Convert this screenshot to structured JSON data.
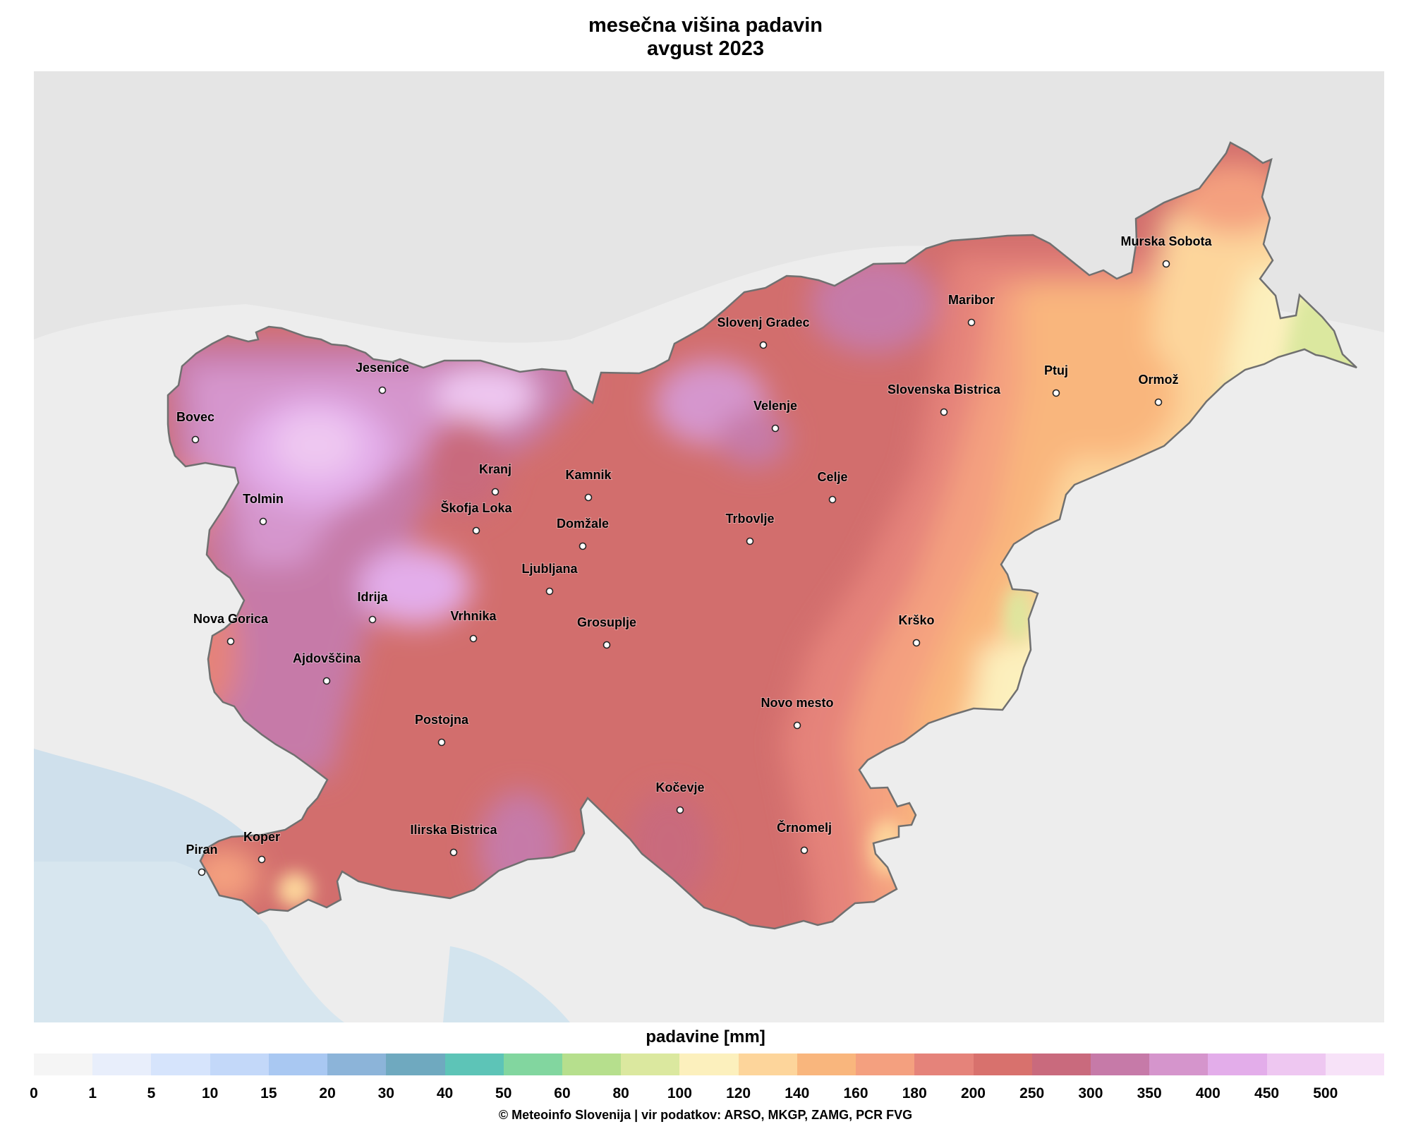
{
  "title": "mesečna višina padavin",
  "subtitle": "avgust 2023",
  "legend": {
    "label": "padavine [mm]",
    "ticks": [
      "0",
      "1",
      "5",
      "10",
      "15",
      "20",
      "30",
      "40",
      "50",
      "60",
      "80",
      "100",
      "120",
      "140",
      "160",
      "180",
      "200",
      "250",
      "300",
      "350",
      "400",
      "450",
      "500"
    ],
    "colors": [
      "#f5f5f5",
      "#e8eefb",
      "#d6e4fc",
      "#c3d8f9",
      "#a9c8f2",
      "#8cb4d9",
      "#6fa9bf",
      "#5dc4b7",
      "#82d69f",
      "#b6df8d",
      "#dbe89f",
      "#fcf0bd",
      "#fdd59b",
      "#f9b67d",
      "#f4a07f",
      "#e5837a",
      "#d8716d",
      "#c96a7d",
      "#c67aa8",
      "#d595cc",
      "#e3adea",
      "#eec7f1",
      "#f7e2f8"
    ]
  },
  "footer": "© Meteoinfo Slovenija  |  vir podatkov: ARSO, MKGP, ZAMG, PCR FVG",
  "cities": [
    {
      "name": "Jesenice"
    },
    {
      "name": "Bovec"
    },
    {
      "name": "Kranj"
    },
    {
      "name": "Kamnik"
    },
    {
      "name": "Tolmin"
    },
    {
      "name": "Škofja Loka"
    },
    {
      "name": "Domžale"
    },
    {
      "name": "Slovenj Gradec"
    },
    {
      "name": "Maribor"
    },
    {
      "name": "Murska Sobota"
    },
    {
      "name": "Ptuj"
    },
    {
      "name": "Ormož"
    },
    {
      "name": "Slovenska Bistrica"
    },
    {
      "name": "Velenje"
    },
    {
      "name": "Celje"
    },
    {
      "name": "Trbovlje"
    },
    {
      "name": "Ljubljana"
    },
    {
      "name": "Idrija"
    },
    {
      "name": "Nova Gorica"
    },
    {
      "name": "Vrhnika"
    },
    {
      "name": "Grosuplje"
    },
    {
      "name": "Ajdovščina"
    },
    {
      "name": "Krško"
    },
    {
      "name": "Novo mesto"
    },
    {
      "name": "Postojna"
    },
    {
      "name": "Kočevje"
    },
    {
      "name": "Črnomelj"
    },
    {
      "name": "Ilirska Bistrica"
    },
    {
      "name": "Piran"
    },
    {
      "name": "Koper"
    }
  ]
}
